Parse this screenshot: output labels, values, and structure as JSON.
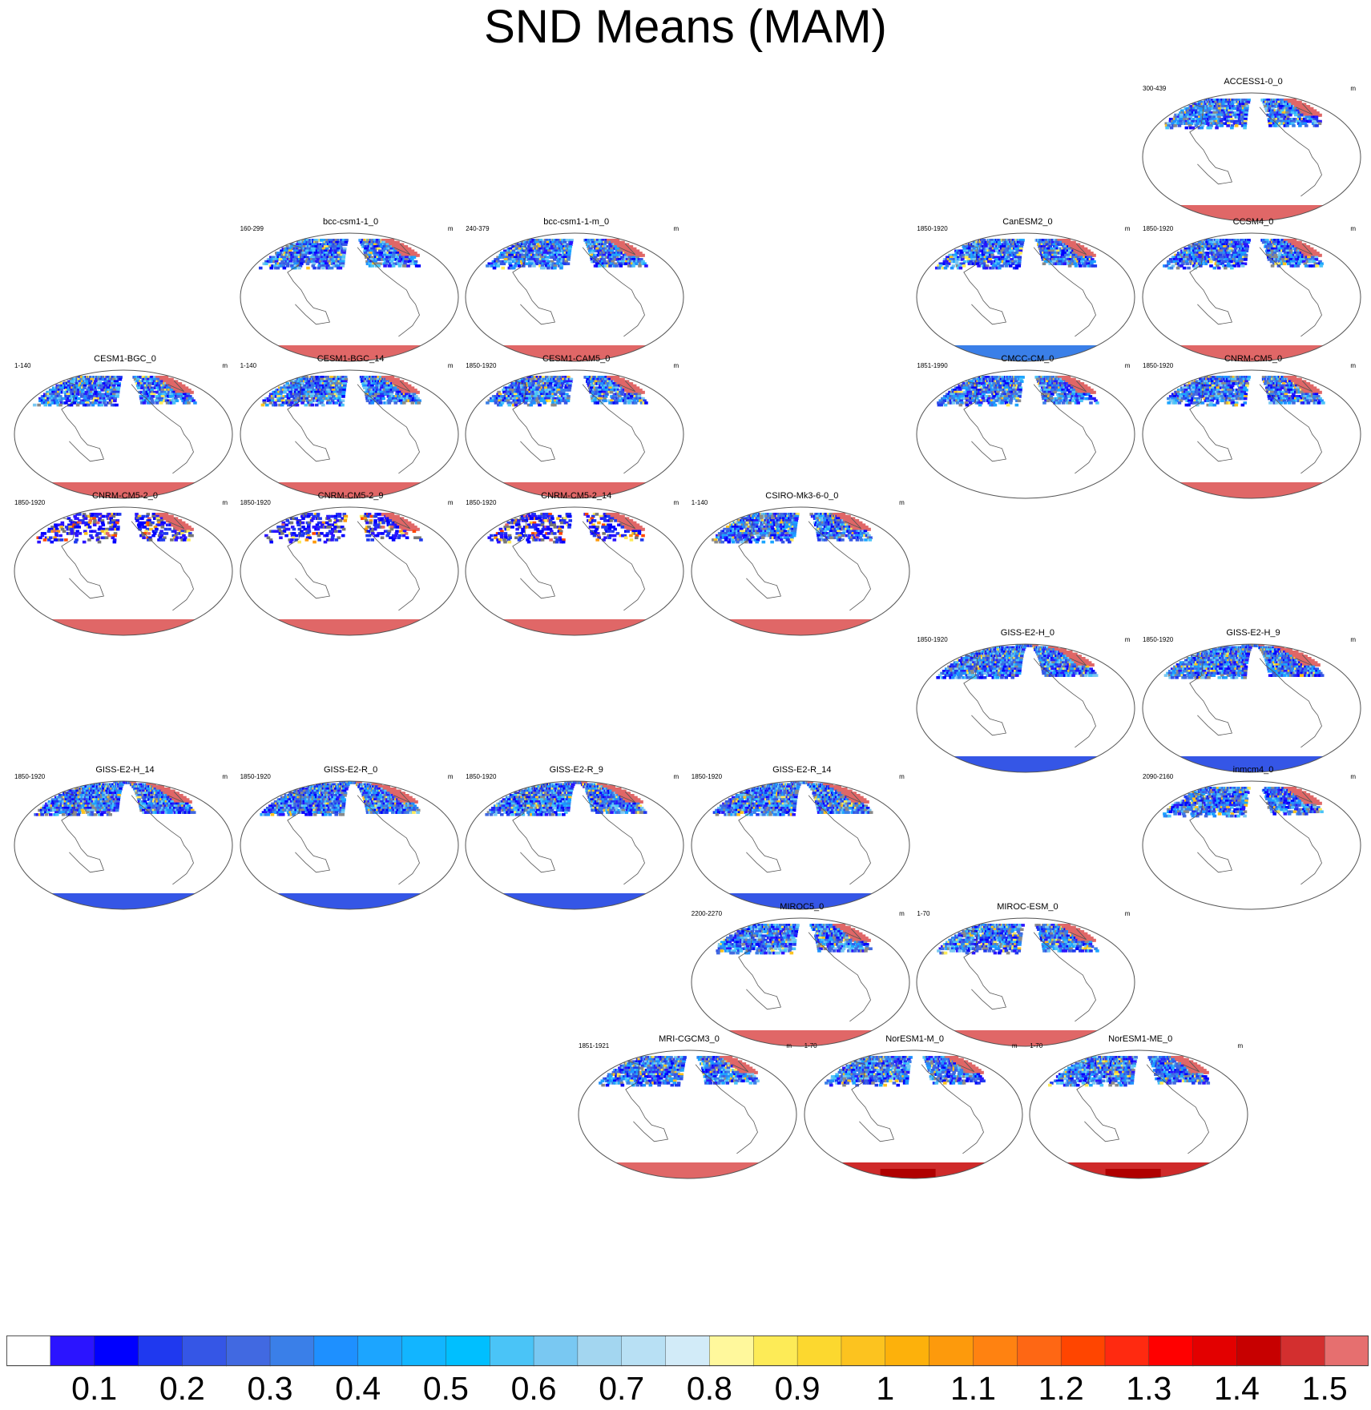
{
  "title": "SND Means (MAM)",
  "chart_data": {
    "type": "heatmap",
    "title": "SND Means (MAM)",
    "variable": "SND",
    "season": "MAM",
    "units": "m",
    "projection": "Winkel-tripel world map, Pacific-centered",
    "colorbar": {
      "colors": [
        "#ffffff",
        "#2b14ff",
        "#0000ff",
        "#1f39ef",
        "#3556e6",
        "#4169e1",
        "#3a7fe8",
        "#1e90ff",
        "#1ca5ff",
        "#12b5ff",
        "#00bfff",
        "#4ac4f7",
        "#79c8f2",
        "#a3d6f0",
        "#b8e0f4",
        "#d2ebf8",
        "#fff89c",
        "#fdeb57",
        "#fcd82f",
        "#fcc31f",
        "#fdb10b",
        "#fd9a0c",
        "#ff8211",
        "#fe6714",
        "#ff4500",
        "#ff2a10",
        "#ff0000",
        "#e30000",
        "#c70000",
        "#d32f2f",
        "#e66f6f"
      ],
      "labels": [
        "0.1",
        "0.2",
        "0.3",
        "0.4",
        "0.5",
        "0.6",
        "0.7",
        "0.8",
        "0.9",
        "1",
        "1.1",
        "1.2",
        "1.3",
        "1.4",
        "1.5"
      ],
      "label_positions_at_box_edges": [
        2,
        4,
        6,
        8,
        10,
        12,
        14,
        16,
        18,
        20,
        22,
        24,
        26,
        28,
        30
      ]
    },
    "panels": [
      {
        "model": "ACCESS1-0_0",
        "years": "300-439",
        "units": "m",
        "antarctic": "#e06767",
        "snow_extent": "medium",
        "row": 0,
        "col": 5
      },
      {
        "model": "bcc-csm1-1_0",
        "years": "160-299",
        "units": "m",
        "antarctic": "#e06767",
        "snow_extent": "medium",
        "row": 1,
        "col": 1
      },
      {
        "model": "bcc-csm1-1-m_0",
        "years": "240-379",
        "units": "m",
        "antarctic": "#e06767",
        "snow_extent": "medium",
        "row": 1,
        "col": 2
      },
      {
        "model": "CanESM2_0",
        "years": "1850-1920",
        "units": "m",
        "antarctic": "#3a7fe8",
        "snow_extent": "medium",
        "row": 1,
        "col": 4
      },
      {
        "model": "CCSM4_0",
        "years": "1850-1920",
        "units": "m",
        "antarctic": "#e06767",
        "snow_extent": "medium",
        "row": 1,
        "col": 5
      },
      {
        "model": "CESM1-BGC_0",
        "years": "1-140",
        "units": "m",
        "antarctic": "#e06767",
        "snow_extent": "medium",
        "row": 2,
        "col": 0
      },
      {
        "model": "CESM1-BGC_14",
        "years": "1-140",
        "units": "m",
        "antarctic": "#e06767",
        "snow_extent": "medium",
        "row": 2,
        "col": 1
      },
      {
        "model": "CESM1-CAM5_0",
        "years": "1850-1920",
        "units": "m",
        "antarctic": "#e06767",
        "snow_extent": "medium",
        "row": 2,
        "col": 2
      },
      {
        "model": "CMCC-CM_0",
        "years": "1851-1990",
        "units": "m",
        "antarctic": "none",
        "snow_extent": "medium",
        "row": 2,
        "col": 4
      },
      {
        "model": "CNRM-CM5_0",
        "years": "1850-1920",
        "units": "m",
        "antarctic": "#e06767",
        "snow_extent": "medium",
        "row": 2,
        "col": 5
      },
      {
        "model": "CNRM-CM5-2_0",
        "years": "1850-1920",
        "units": "m",
        "antarctic": "#e06767",
        "snow_extent": "sparse",
        "row": 3,
        "col": 0
      },
      {
        "model": "CNRM-CM5-2_9",
        "years": "1850-1920",
        "units": "m",
        "antarctic": "#e06767",
        "snow_extent": "sparse",
        "row": 3,
        "col": 1
      },
      {
        "model": "CNRM-CM5-2_14",
        "years": "1850-1920",
        "units": "m",
        "antarctic": "#e06767",
        "snow_extent": "sparse",
        "row": 3,
        "col": 2
      },
      {
        "model": "CSIRO-Mk3-6-0_0",
        "years": "1-140",
        "units": "m",
        "antarctic": "#e06767",
        "snow_extent": "medium",
        "row": 3,
        "col": 3
      },
      {
        "model": "GISS-E2-H_0",
        "years": "1850-1920",
        "units": "m",
        "antarctic": "#3556e6",
        "snow_extent": "wide",
        "row": 4,
        "col": 4
      },
      {
        "model": "GISS-E2-H_9",
        "years": "1850-1920",
        "units": "m",
        "antarctic": "#3556e6",
        "snow_extent": "wide",
        "row": 4,
        "col": 5
      },
      {
        "model": "GISS-E2-H_14",
        "years": "1850-1920",
        "units": "m",
        "antarctic": "#3556e6",
        "snow_extent": "wide",
        "row": 5,
        "col": 0
      },
      {
        "model": "GISS-E2-R_0",
        "years": "1850-1920",
        "units": "m",
        "antarctic": "#3556e6",
        "snow_extent": "wide",
        "row": 5,
        "col": 1
      },
      {
        "model": "GISS-E2-R_9",
        "years": "1850-1920",
        "units": "m",
        "antarctic": "#3556e6",
        "snow_extent": "wide",
        "row": 5,
        "col": 2
      },
      {
        "model": "GISS-E2-R_14",
        "years": "1850-1920",
        "units": "m",
        "antarctic": "#3556e6",
        "snow_extent": "wide",
        "row": 5,
        "col": 3
      },
      {
        "model": "inmcm4_0",
        "years": "2090-2160",
        "units": "m",
        "antarctic": "none",
        "snow_extent": "medium",
        "row": 5,
        "col": 5
      },
      {
        "model": "MIROC5_0",
        "years": "2200-2270",
        "units": "m",
        "antarctic": "#e06767",
        "snow_extent": "medium",
        "row": 6,
        "col": 3
      },
      {
        "model": "MIROC-ESM_0",
        "years": "1-70",
        "units": "m",
        "antarctic": "#e06767",
        "snow_extent": "medium",
        "row": 6,
        "col": 4
      },
      {
        "model": "MRI-CGCM3_0",
        "years": "1851-1921",
        "units": "m",
        "antarctic": "#e06767",
        "snow_extent": "medium",
        "row": 7,
        "col": 2.5
      },
      {
        "model": "NorESM1-M_0",
        "years": "1-70",
        "units": "m",
        "antarctic": "#cf2a2a",
        "snow_extent": "medium",
        "row": 7,
        "col": 3.5
      },
      {
        "model": "NorESM1-ME_0",
        "years": "1-70",
        "units": "m",
        "antarctic": "#cf2a2a",
        "snow_extent": "medium",
        "row": 7,
        "col": 4.5
      }
    ]
  }
}
